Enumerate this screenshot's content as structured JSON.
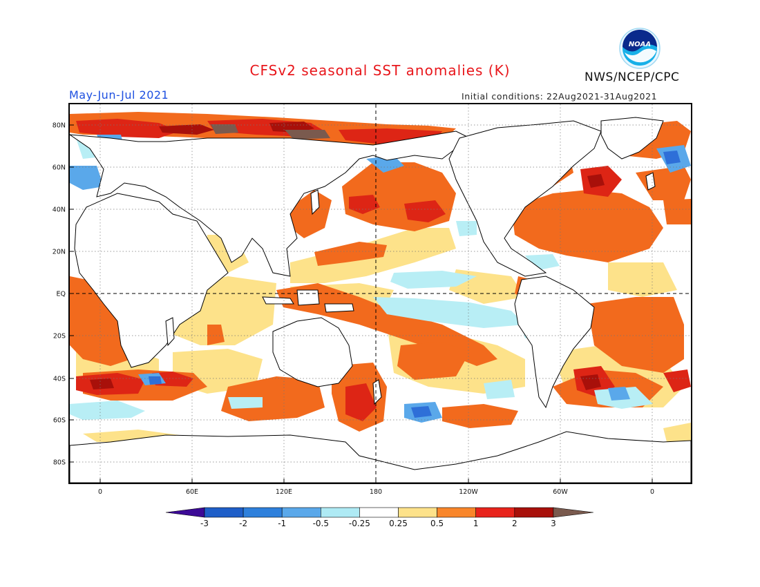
{
  "title": "CFSv2 seasonal SST anomalies (K)",
  "brand": "NWS/NCEP/CPC",
  "logo_text": "NOAA",
  "season": "May-Jun-Jul 2021",
  "initial_conditions": "Initial conditions: 22Aug2021-31Aug2021",
  "map": {
    "lat_ticks": [
      "80N",
      "60N",
      "40N",
      "20N",
      "EQ",
      "20S",
      "40S",
      "60S",
      "80S"
    ],
    "lon_ticks": [
      "0",
      "60E",
      "120E",
      "180",
      "120W",
      "60W",
      "0"
    ],
    "grid": "dotted",
    "reference_lines": [
      "EQ",
      "180"
    ]
  },
  "colorbar": {
    "labels": [
      "-3",
      "-2",
      "-1",
      "-0.5",
      "-0.25",
      "0.25",
      "0.5",
      "1",
      "2",
      "3"
    ],
    "colors": [
      "#3c0a96",
      "#1e5ec8",
      "#2e80dc",
      "#5aa8ea",
      "#aeeaf4",
      "#ffffff",
      "#fde28a",
      "#f9862a",
      "#e8231b",
      "#a8100a",
      "#7a5a4e"
    ]
  },
  "palette": {
    "land": "#ffffff",
    "weak_pos": "#fde28a",
    "mod_pos": "#f26a1d",
    "strong_pos": "#dd2515",
    "very_strong_pos": "#a8100a",
    "extreme_pos": "#7a5a4e",
    "weak_neg": "#b8eef5",
    "mod_neg": "#5aa8ea",
    "strong_neg": "#2e6fd8"
  }
}
